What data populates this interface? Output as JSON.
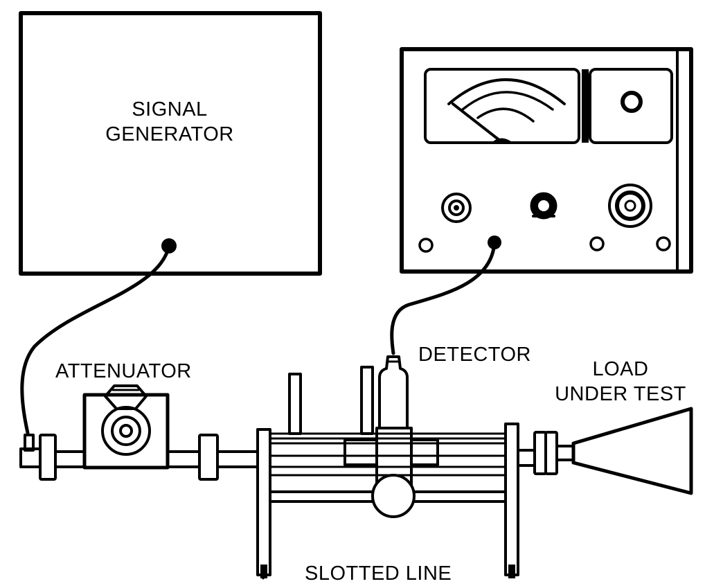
{
  "labels": {
    "signal_generator_line1": "SIGNAL",
    "signal_generator_line2": "GENERATOR",
    "attenuator": "ATTENUATOR",
    "detector": "DETECTOR",
    "load_line1": "LOAD",
    "load_line2": "UNDER TEST",
    "slotted_line": "SLOTTED LINE"
  },
  "colors": {
    "ink": "#000000",
    "paper": "#ffffff"
  }
}
